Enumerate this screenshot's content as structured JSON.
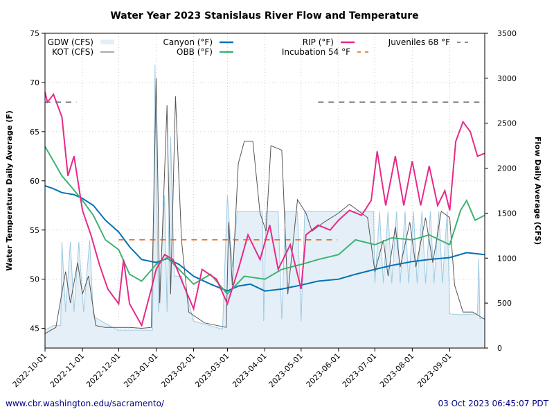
{
  "chart_data": {
    "type": "line",
    "title": "Water Year 2023 Stanislaus River Flow and Temperature",
    "ylabel_left": "Water Temperature Daily Average (F)",
    "ylabel_right": "Flow Daily Average (CFS)",
    "xlim": [
      "2022-10-01",
      "2023-09-30"
    ],
    "ylim_left": [
      43,
      75
    ],
    "ylim_right": [
      0,
      3500
    ],
    "yticks_left": [
      45,
      50,
      55,
      60,
      65,
      70,
      75
    ],
    "yticks_right": [
      0,
      500,
      1000,
      1500,
      2000,
      2500,
      3000,
      3500
    ],
    "xticks": [
      "2022-10-01",
      "2022-11-01",
      "2022-12-01",
      "2023-01-01",
      "2023-02-01",
      "2023-03-01",
      "2023-04-01",
      "2023-05-01",
      "2023-06-01",
      "2023-07-01",
      "2023-08-01",
      "2023-09-01"
    ],
    "grid": true,
    "legend": "top",
    "series": [
      {
        "name": "GDW (CFS)",
        "axis": "right",
        "kind": "area",
        "color": "#9ecae1",
        "points": [
          [
            "2022-10-01",
            200
          ],
          [
            "2022-10-08",
            250
          ],
          [
            "2022-10-14",
            250
          ],
          [
            "2022-10-15",
            1180
          ],
          [
            "2022-10-18",
            400
          ],
          [
            "2022-10-22",
            1180
          ],
          [
            "2022-10-25",
            400
          ],
          [
            "2022-10-29",
            1180
          ],
          [
            "2022-11-02",
            400
          ],
          [
            "2022-11-07",
            1200
          ],
          [
            "2022-11-10",
            350
          ],
          [
            "2022-11-30",
            200
          ],
          [
            "2022-12-29",
            200
          ],
          [
            "2022-12-31",
            3150
          ],
          [
            "2023-01-03",
            400
          ],
          [
            "2023-01-08",
            1700
          ],
          [
            "2023-01-10",
            400
          ],
          [
            "2023-01-13",
            2350
          ],
          [
            "2023-01-16",
            800
          ],
          [
            "2023-01-22",
            800
          ],
          [
            "2023-02-01",
            300
          ],
          [
            "2023-02-25",
            210
          ],
          [
            "2023-03-01",
            1700
          ],
          [
            "2023-03-05",
            900
          ],
          [
            "2023-03-09",
            1520
          ],
          [
            "2023-03-30",
            1520
          ],
          [
            "2023-03-31",
            300
          ],
          [
            "2023-04-02",
            1520
          ],
          [
            "2023-04-12",
            1520
          ],
          [
            "2023-04-15",
            320
          ],
          [
            "2023-04-18",
            1520
          ],
          [
            "2023-04-28",
            1520
          ],
          [
            "2023-05-01",
            300
          ],
          [
            "2023-05-04",
            1520
          ],
          [
            "2023-06-30",
            1520
          ],
          [
            "2023-07-01",
            720
          ],
          [
            "2023-07-05",
            1520
          ],
          [
            "2023-07-08",
            720
          ],
          [
            "2023-07-12",
            1520
          ],
          [
            "2023-07-15",
            720
          ],
          [
            "2023-07-19",
            1520
          ],
          [
            "2023-07-22",
            720
          ],
          [
            "2023-07-26",
            1520
          ],
          [
            "2023-07-29",
            720
          ],
          [
            "2023-08-02",
            1520
          ],
          [
            "2023-08-05",
            720
          ],
          [
            "2023-08-09",
            1520
          ],
          [
            "2023-08-12",
            720
          ],
          [
            "2023-08-16",
            1520
          ],
          [
            "2023-08-19",
            720
          ],
          [
            "2023-08-23",
            1520
          ],
          [
            "2023-08-26",
            720
          ],
          [
            "2023-08-30",
            1520
          ],
          [
            "2023-09-01",
            380
          ],
          [
            "2023-09-10",
            370
          ],
          [
            "2023-09-24",
            380
          ],
          [
            "2023-09-25",
            1000
          ],
          [
            "2023-09-26",
            330
          ],
          [
            "2023-09-30",
            330
          ]
        ]
      },
      {
        "name": "KOT (CFS)",
        "axis": "right",
        "kind": "line",
        "color": "#555555",
        "points": [
          [
            "2022-10-01",
            160
          ],
          [
            "2022-10-10",
            230
          ],
          [
            "2022-10-18",
            850
          ],
          [
            "2022-10-22",
            500
          ],
          [
            "2022-10-28",
            950
          ],
          [
            "2022-11-01",
            600
          ],
          [
            "2022-11-06",
            800
          ],
          [
            "2022-11-12",
            250
          ],
          [
            "2022-11-20",
            230
          ],
          [
            "2022-12-10",
            230
          ],
          [
            "2022-12-20",
            220
          ],
          [
            "2022-12-28",
            230
          ],
          [
            "2023-01-01",
            3000
          ],
          [
            "2023-01-04",
            500
          ],
          [
            "2023-01-10",
            2700
          ],
          [
            "2023-01-13",
            600
          ],
          [
            "2023-01-17",
            2800
          ],
          [
            "2023-01-22",
            1200
          ],
          [
            "2023-01-28",
            400
          ],
          [
            "2023-02-10",
            280
          ],
          [
            "2023-02-28",
            230
          ],
          [
            "2023-03-02",
            1400
          ],
          [
            "2023-03-05",
            700
          ],
          [
            "2023-03-10",
            2050
          ],
          [
            "2023-03-15",
            2300
          ],
          [
            "2023-03-22",
            2300
          ],
          [
            "2023-03-28",
            1500
          ],
          [
            "2023-04-02",
            1300
          ],
          [
            "2023-04-06",
            2250
          ],
          [
            "2023-04-15",
            2200
          ],
          [
            "2023-04-20",
            600
          ],
          [
            "2023-04-28",
            1650
          ],
          [
            "2023-05-05",
            1500
          ],
          [
            "2023-05-10",
            1300
          ],
          [
            "2023-05-20",
            1400
          ],
          [
            "2023-06-01",
            1500
          ],
          [
            "2023-06-10",
            1600
          ],
          [
            "2023-06-25",
            1450
          ],
          [
            "2023-07-01",
            850
          ],
          [
            "2023-07-08",
            1200
          ],
          [
            "2023-07-12",
            800
          ],
          [
            "2023-07-18",
            1350
          ],
          [
            "2023-07-22",
            900
          ],
          [
            "2023-07-30",
            1400
          ],
          [
            "2023-08-04",
            900
          ],
          [
            "2023-08-12",
            1450
          ],
          [
            "2023-08-18",
            950
          ],
          [
            "2023-08-25",
            1520
          ],
          [
            "2023-09-01",
            1450
          ],
          [
            "2023-09-05",
            700
          ],
          [
            "2023-09-12",
            400
          ],
          [
            "2023-09-20",
            400
          ],
          [
            "2023-09-30",
            320
          ]
        ]
      },
      {
        "name": "Canyon (°F)",
        "axis": "left",
        "kind": "line",
        "color": "#0072b2",
        "points": [
          [
            "2022-10-01",
            59.5
          ],
          [
            "2022-10-08",
            59.2
          ],
          [
            "2022-10-15",
            58.8
          ],
          [
            "2022-10-25",
            58.6
          ],
          [
            "2022-11-01",
            58.2
          ],
          [
            "2022-11-10",
            57.5
          ],
          [
            "2022-11-20",
            56.0
          ],
          [
            "2022-12-01",
            54.8
          ],
          [
            "2022-12-10",
            53.3
          ],
          [
            "2022-12-20",
            52.0
          ],
          [
            "2023-01-01",
            51.7
          ],
          [
            "2023-01-10",
            52.1
          ],
          [
            "2023-01-20",
            51.5
          ],
          [
            "2023-02-01",
            50.3
          ],
          [
            "2023-02-15",
            49.5
          ],
          [
            "2023-03-01",
            48.8
          ],
          [
            "2023-03-10",
            49.3
          ],
          [
            "2023-03-20",
            49.5
          ],
          [
            "2023-04-01",
            48.8
          ],
          [
            "2023-04-15",
            49.0
          ],
          [
            "2023-05-01",
            49.4
          ],
          [
            "2023-05-15",
            49.8
          ],
          [
            "2023-06-01",
            50.0
          ],
          [
            "2023-06-15",
            50.5
          ],
          [
            "2023-07-01",
            51.0
          ],
          [
            "2023-07-15",
            51.4
          ],
          [
            "2023-08-01",
            51.8
          ],
          [
            "2023-08-15",
            52.0
          ],
          [
            "2023-09-01",
            52.2
          ],
          [
            "2023-09-15",
            52.7
          ],
          [
            "2023-09-30",
            52.5
          ]
        ]
      },
      {
        "name": "OBB (°F)",
        "axis": "left",
        "kind": "line",
        "color": "#3cb371",
        "points": [
          [
            "2022-10-01",
            63.5
          ],
          [
            "2022-10-08",
            62.0
          ],
          [
            "2022-10-15",
            60.5
          ],
          [
            "2022-10-22",
            59.5
          ],
          [
            "2022-11-01",
            58.0
          ],
          [
            "2022-11-10",
            56.5
          ],
          [
            "2022-11-20",
            54.0
          ],
          [
            "2022-12-01",
            53.0
          ],
          [
            "2022-12-10",
            50.5
          ],
          [
            "2022-12-20",
            49.8
          ],
          [
            "2023-01-01",
            51.5
          ],
          [
            "2023-01-10",
            52.2
          ],
          [
            "2023-01-20",
            51.0
          ],
          [
            "2023-02-01",
            49.5
          ],
          [
            "2023-02-15",
            50.5
          ],
          [
            "2023-03-01",
            48.5
          ],
          [
            "2023-03-15",
            50.3
          ],
          [
            "2023-04-01",
            50.0
          ],
          [
            "2023-04-15",
            51.0
          ],
          [
            "2023-05-01",
            51.5
          ],
          [
            "2023-05-15",
            52.0
          ],
          [
            "2023-06-01",
            52.5
          ],
          [
            "2023-06-15",
            54.0
          ],
          [
            "2023-07-01",
            53.5
          ],
          [
            "2023-07-15",
            54.2
          ],
          [
            "2023-08-01",
            54.0
          ],
          [
            "2023-08-15",
            54.5
          ],
          [
            "2023-09-01",
            53.5
          ],
          [
            "2023-09-10",
            57.0
          ],
          [
            "2023-09-15",
            58.0
          ],
          [
            "2023-09-22",
            56.0
          ],
          [
            "2023-09-30",
            56.5
          ]
        ]
      },
      {
        "name": "RIP (°F)",
        "axis": "left",
        "kind": "line",
        "color": "#e7298a",
        "points": [
          [
            "2022-10-01",
            69.0
          ],
          [
            "2022-10-03",
            68.0
          ],
          [
            "2022-10-08",
            68.8
          ],
          [
            "2022-10-15",
            66.5
          ],
          [
            "2022-10-20",
            60.5
          ],
          [
            "2022-10-25",
            62.5
          ],
          [
            "2022-11-01",
            57.0
          ],
          [
            "2022-11-08",
            54.5
          ],
          [
            "2022-11-15",
            51.5
          ],
          [
            "2022-11-22",
            49.0
          ],
          [
            "2022-12-01",
            47.5
          ],
          [
            "2022-12-05",
            52.0
          ],
          [
            "2022-12-10",
            47.5
          ],
          [
            "2022-12-20",
            45.3
          ],
          [
            "2022-12-28",
            49.0
          ],
          [
            "2023-01-01",
            51.0
          ],
          [
            "2023-01-08",
            52.5
          ],
          [
            "2023-01-15",
            52.0
          ],
          [
            "2023-01-25",
            49.0
          ],
          [
            "2023-02-01",
            47.0
          ],
          [
            "2023-02-08",
            51.0
          ],
          [
            "2023-02-20",
            50.0
          ],
          [
            "2023-03-01",
            47.5
          ],
          [
            "2023-03-10",
            51.0
          ],
          [
            "2023-03-18",
            54.5
          ],
          [
            "2023-03-28",
            52.0
          ],
          [
            "2023-04-05",
            55.5
          ],
          [
            "2023-04-12",
            51.0
          ],
          [
            "2023-04-22",
            53.5
          ],
          [
            "2023-05-01",
            49.0
          ],
          [
            "2023-05-05",
            54.5
          ],
          [
            "2023-05-15",
            55.5
          ],
          [
            "2023-05-25",
            55.0
          ],
          [
            "2023-06-01",
            56.0
          ],
          [
            "2023-06-10",
            57.0
          ],
          [
            "2023-06-20",
            56.5
          ],
          [
            "2023-06-28",
            58.0
          ],
          [
            "2023-07-03",
            63.0
          ],
          [
            "2023-07-10",
            57.5
          ],
          [
            "2023-07-18",
            62.5
          ],
          [
            "2023-07-25",
            57.5
          ],
          [
            "2023-08-01",
            62.0
          ],
          [
            "2023-08-08",
            57.5
          ],
          [
            "2023-08-15",
            61.5
          ],
          [
            "2023-08-22",
            57.5
          ],
          [
            "2023-08-28",
            59.0
          ],
          [
            "2023-09-01",
            57.0
          ],
          [
            "2023-09-06",
            64.0
          ],
          [
            "2023-09-12",
            66.0
          ],
          [
            "2023-09-18",
            65.0
          ],
          [
            "2023-09-24",
            62.5
          ],
          [
            "2023-09-30",
            62.8
          ]
        ]
      },
      {
        "name": "Incubation 54 °F",
        "axis": "left",
        "kind": "dashed",
        "color": "#e66101",
        "points": [
          [
            "2022-12-01",
            54
          ],
          [
            "2023-05-31",
            54
          ]
        ]
      },
      {
        "name": "Juveniles 68 °F",
        "axis": "left",
        "kind": "dashed",
        "color": "#666666",
        "points": [
          [
            "2022-10-01",
            68
          ],
          [
            "2022-10-27",
            68
          ]
        ]
      },
      {
        "name": "",
        "axis": "left",
        "kind": "dashed",
        "color": "#666666",
        "points": [
          [
            "2023-05-15",
            68
          ],
          [
            "2023-09-30",
            68
          ]
        ]
      }
    ]
  },
  "footer": {
    "url": "www.cbr.washington.edu/sacramento/",
    "timestamp": "03 Oct 2023 06:45:07 PDT"
  }
}
